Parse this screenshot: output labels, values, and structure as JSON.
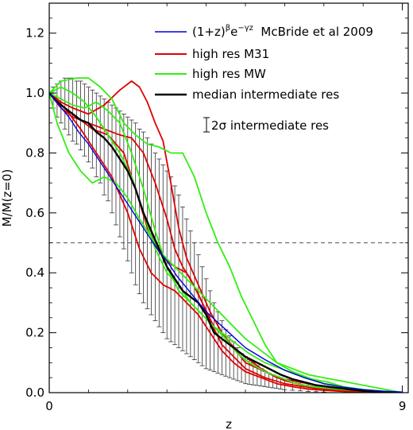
{
  "chart_data": {
    "type": "line",
    "xlabel": "z",
    "ylabel": "M/M(z=0)",
    "xlim": [
      0,
      9.15
    ],
    "ylim": [
      0,
      1.3
    ],
    "x_ticks": [
      0,
      9
    ],
    "x_tick_labels": [
      "0",
      "9"
    ],
    "y_ticks": [
      0.0,
      0.2,
      0.4,
      0.6,
      0.8,
      1.0,
      1.2
    ],
    "y_tick_labels": [
      "0.0",
      "0.2",
      "0.4",
      "0.6",
      "0.8",
      "1.0",
      "1.2"
    ],
    "grid": false,
    "legend_position": "top-right",
    "reference_line": {
      "y": 0.5,
      "style": "dashed"
    },
    "legend": [
      {
        "label_base": "(1+z)",
        "label_sup1": "β",
        "label_mid": "e",
        "label_sup2": "−γz",
        "label_tail": "  McBride et al 2009",
        "color": "#0000dd"
      },
      {
        "label": "high res M31",
        "color": "#dd0000"
      },
      {
        "label": "high res MW",
        "color": "#33ee11"
      },
      {
        "label": "median intermediate res",
        "color": "#000000"
      },
      {
        "label": "2σ intermediate res",
        "color": "#000000"
      }
    ],
    "series": [
      {
        "name": "(1+z)^β e^(−γz) McBride et al 2009",
        "color": "#0000dd",
        "x": [
          0,
          0.25,
          0.5,
          0.75,
          1.0,
          1.25,
          1.5,
          1.75,
          2.0,
          2.25,
          2.5,
          2.75,
          3.0,
          3.25,
          3.5,
          3.75,
          4.0,
          4.25,
          4.5,
          4.75,
          5.0,
          5.5,
          6.0,
          6.5,
          7.0,
          7.5,
          8.0,
          8.5,
          9.0
        ],
        "y": [
          1.0,
          0.96,
          0.92,
          0.87,
          0.83,
          0.78,
          0.73,
          0.68,
          0.63,
          0.58,
          0.53,
          0.48,
          0.44,
          0.39,
          0.35,
          0.31,
          0.27,
          0.24,
          0.21,
          0.18,
          0.15,
          0.11,
          0.075,
          0.05,
          0.03,
          0.018,
          0.01,
          0.005,
          0.002
        ]
      },
      {
        "name": "high res M31 a",
        "color": "#dd0000",
        "x": [
          0,
          0.3,
          0.6,
          1.0,
          1.4,
          1.8,
          2.1,
          2.3,
          2.5,
          2.7,
          2.9,
          3.1,
          3.3,
          3.5,
          3.8,
          4.1,
          4.4,
          4.7,
          5.0,
          5.5,
          6.0,
          6.5,
          7.0,
          7.5,
          8.0,
          9.0
        ],
        "y": [
          1.0,
          0.97,
          0.95,
          0.93,
          0.96,
          1.01,
          1.04,
          1.02,
          0.97,
          0.9,
          0.84,
          0.7,
          0.55,
          0.45,
          0.36,
          0.27,
          0.2,
          0.15,
          0.1,
          0.07,
          0.04,
          0.025,
          0.015,
          0.008,
          0.004,
          0.0
        ]
      },
      {
        "name": "high res M31 b",
        "color": "#dd0000",
        "x": [
          0,
          0.3,
          0.7,
          1.1,
          1.5,
          1.9,
          2.2,
          2.5,
          2.8,
          3.0,
          3.2,
          3.5,
          3.8,
          4.1,
          4.4,
          4.7,
          5.0,
          5.5,
          6.0,
          6.5,
          7.0,
          8.0,
          9.0
        ],
        "y": [
          1.0,
          0.96,
          0.92,
          0.88,
          0.86,
          0.8,
          0.68,
          0.55,
          0.47,
          0.44,
          0.42,
          0.4,
          0.33,
          0.24,
          0.16,
          0.12,
          0.08,
          0.05,
          0.03,
          0.02,
          0.01,
          0.004,
          0.0
        ]
      },
      {
        "name": "high res M31 c",
        "color": "#dd0000",
        "x": [
          0,
          0.3,
          0.6,
          1.0,
          1.4,
          1.8,
          2.1,
          2.4,
          2.7,
          3.0,
          3.2,
          3.4,
          3.6,
          3.9,
          4.2,
          4.5,
          4.8,
          5.1,
          5.4,
          5.8,
          6.2,
          6.6,
          7.0,
          7.5,
          8.0,
          9.0
        ],
        "y": [
          1.0,
          0.95,
          0.92,
          0.9,
          0.88,
          0.86,
          0.85,
          0.8,
          0.7,
          0.58,
          0.48,
          0.42,
          0.38,
          0.3,
          0.22,
          0.18,
          0.14,
          0.11,
          0.08,
          0.05,
          0.04,
          0.03,
          0.02,
          0.012,
          0.006,
          0.0
        ]
      },
      {
        "name": "high res M31 d",
        "color": "#dd0000",
        "x": [
          0,
          0.4,
          0.8,
          1.2,
          1.6,
          2.0,
          2.3,
          2.6,
          2.9,
          3.2,
          3.5,
          3.8,
          4.1,
          4.4,
          4.7,
          5.0,
          5.4,
          5.8,
          6.2,
          6.6,
          7.0,
          7.5,
          8.0,
          9.0
        ],
        "y": [
          1.0,
          0.95,
          0.88,
          0.8,
          0.72,
          0.6,
          0.48,
          0.4,
          0.36,
          0.34,
          0.3,
          0.26,
          0.2,
          0.14,
          0.1,
          0.07,
          0.05,
          0.03,
          0.02,
          0.012,
          0.008,
          0.004,
          0.002,
          0.0
        ]
      },
      {
        "name": "high res MW a",
        "color": "#33ee11",
        "x": [
          0,
          0.3,
          0.7,
          1.0,
          1.3,
          1.6,
          1.9,
          2.2,
          2.5,
          2.8,
          3.1,
          3.4,
          3.7,
          4.0,
          4.3,
          4.6,
          4.9,
          5.2,
          5.5,
          5.8,
          6.2,
          6.6,
          7.0,
          7.4,
          7.8,
          8.2,
          8.6,
          9.0
        ],
        "y": [
          1.0,
          1.04,
          1.05,
          1.05,
          1.02,
          0.98,
          0.9,
          0.86,
          0.83,
          0.82,
          0.8,
          0.8,
          0.72,
          0.6,
          0.5,
          0.42,
          0.32,
          0.24,
          0.16,
          0.1,
          0.08,
          0.06,
          0.05,
          0.04,
          0.03,
          0.02,
          0.01,
          0.0
        ]
      },
      {
        "name": "high res MW b",
        "color": "#33ee11",
        "x": [
          0,
          0.2,
          0.5,
          0.8,
          1.1,
          1.4,
          1.7,
          2.0,
          2.3,
          2.6,
          2.9,
          3.2,
          3.5,
          3.8,
          4.1,
          4.4,
          4.7,
          5.0,
          5.4,
          5.8,
          6.2,
          6.6,
          7.0,
          7.5,
          8.0,
          8.5,
          9.0
        ],
        "y": [
          1.0,
          0.9,
          0.8,
          0.74,
          0.7,
          0.72,
          0.7,
          0.65,
          0.58,
          0.52,
          0.46,
          0.42,
          0.38,
          0.34,
          0.3,
          0.26,
          0.22,
          0.18,
          0.14,
          0.1,
          0.07,
          0.05,
          0.03,
          0.02,
          0.01,
          0.005,
          0.0
        ]
      },
      {
        "name": "high res MW c",
        "color": "#33ee11",
        "x": [
          0,
          0.3,
          0.6,
          0.9,
          1.2,
          1.5,
          1.8,
          2.1,
          2.4,
          2.7,
          3.0,
          3.3,
          3.6,
          3.9,
          4.2,
          4.5,
          4.8,
          5.1,
          5.5,
          5.9,
          6.3,
          6.7,
          7.1,
          7.5,
          8.0,
          8.5,
          9.0
        ],
        "y": [
          1.0,
          0.98,
          0.96,
          0.95,
          0.97,
          0.94,
          0.9,
          0.8,
          0.68,
          0.54,
          0.42,
          0.34,
          0.3,
          0.26,
          0.22,
          0.18,
          0.13,
          0.1,
          0.07,
          0.05,
          0.03,
          0.02,
          0.015,
          0.01,
          0.006,
          0.003,
          0.0
        ]
      },
      {
        "name": "high res MW d",
        "color": "#33ee11",
        "x": [
          0,
          0.3,
          0.6,
          0.9,
          1.2,
          1.5,
          1.8,
          2.1,
          2.4,
          2.7,
          3.0,
          3.3,
          3.6,
          3.9,
          4.2,
          4.5,
          4.8,
          5.1,
          5.5,
          5.9,
          6.3,
          6.7,
          7.1,
          7.5,
          8.0,
          8.5,
          9.0
        ],
        "y": [
          1.0,
          1.02,
          1.0,
          0.97,
          0.92,
          0.86,
          0.8,
          0.72,
          0.6,
          0.48,
          0.4,
          0.36,
          0.3,
          0.26,
          0.22,
          0.19,
          0.16,
          0.13,
          0.1,
          0.08,
          0.06,
          0.045,
          0.035,
          0.02,
          0.01,
          0.004,
          0.0
        ]
      },
      {
        "name": "median intermediate res",
        "color": "#000000",
        "x": [
          0,
          0.2,
          0.4,
          0.6,
          0.8,
          1.0,
          1.2,
          1.4,
          1.6,
          1.8,
          2.0,
          2.2,
          2.4,
          2.6,
          2.8,
          3.0,
          3.2,
          3.4,
          3.6,
          3.8,
          4.0,
          4.2,
          4.4,
          4.6,
          4.8,
          5.0,
          5.3,
          5.6,
          5.9,
          6.2,
          6.5,
          6.8,
          7.1,
          7.4,
          7.7,
          8.0,
          8.5,
          9.0
        ],
        "y": [
          1.0,
          0.97,
          0.95,
          0.93,
          0.91,
          0.9,
          0.87,
          0.85,
          0.82,
          0.78,
          0.74,
          0.68,
          0.6,
          0.54,
          0.48,
          0.42,
          0.38,
          0.34,
          0.32,
          0.3,
          0.26,
          0.2,
          0.18,
          0.16,
          0.14,
          0.12,
          0.1,
          0.08,
          0.06,
          0.045,
          0.035,
          0.025,
          0.02,
          0.015,
          0.01,
          0.006,
          0.003,
          0.0
        ]
      }
    ],
    "error_bars": {
      "color": "#333333",
      "x": [
        0.1,
        0.2,
        0.3,
        0.4,
        0.5,
        0.6,
        0.7,
        0.8,
        0.9,
        1.0,
        1.1,
        1.2,
        1.3,
        1.4,
        1.5,
        1.6,
        1.7,
        1.8,
        1.9,
        2.0,
        2.1,
        2.2,
        2.3,
        2.4,
        2.5,
        2.6,
        2.7,
        2.8,
        2.9,
        3.0,
        3.1,
        3.2,
        3.3,
        3.4,
        3.5,
        3.6,
        3.7,
        3.8,
        3.9,
        4.0,
        4.1,
        4.2,
        4.3,
        4.4,
        4.5,
        4.6,
        4.7,
        4.8,
        4.9,
        5.0,
        5.1,
        5.2,
        5.3,
        5.4,
        5.5,
        5.6,
        5.7,
        5.8,
        5.9,
        6.0,
        6.2,
        6.4,
        6.6,
        6.8,
        7.0
      ],
      "lower": [
        0.95,
        0.92,
        0.9,
        0.88,
        0.86,
        0.84,
        0.83,
        0.81,
        0.79,
        0.77,
        0.75,
        0.72,
        0.7,
        0.66,
        0.64,
        0.6,
        0.56,
        0.52,
        0.48,
        0.44,
        0.4,
        0.36,
        0.33,
        0.3,
        0.28,
        0.26,
        0.24,
        0.22,
        0.2,
        0.18,
        0.17,
        0.16,
        0.15,
        0.14,
        0.13,
        0.12,
        0.11,
        0.1,
        0.09,
        0.08,
        0.075,
        0.07,
        0.065,
        0.06,
        0.055,
        0.05,
        0.045,
        0.04,
        0.035,
        0.03,
        0.028,
        0.026,
        0.024,
        0.022,
        0.02,
        0.018,
        0.016,
        0.014,
        0.012,
        0.01,
        0.008,
        0.006,
        0.004,
        0.003,
        0.002
      ],
      "upper": [
        1.02,
        1.03,
        1.04,
        1.05,
        1.05,
        1.05,
        1.04,
        1.04,
        1.03,
        1.02,
        1.01,
        1.0,
        0.99,
        0.98,
        0.97,
        0.96,
        0.95,
        0.94,
        0.93,
        0.92,
        0.91,
        0.9,
        0.88,
        0.87,
        0.85,
        0.83,
        0.8,
        0.78,
        0.76,
        0.74,
        0.72,
        0.69,
        0.66,
        0.62,
        0.58,
        0.54,
        0.5,
        0.46,
        0.42,
        0.38,
        0.34,
        0.3,
        0.27,
        0.24,
        0.21,
        0.19,
        0.17,
        0.15,
        0.13,
        0.12,
        0.11,
        0.1,
        0.09,
        0.08,
        0.07,
        0.065,
        0.06,
        0.055,
        0.05,
        0.045,
        0.04,
        0.035,
        0.03,
        0.025,
        0.02
      ]
    }
  }
}
